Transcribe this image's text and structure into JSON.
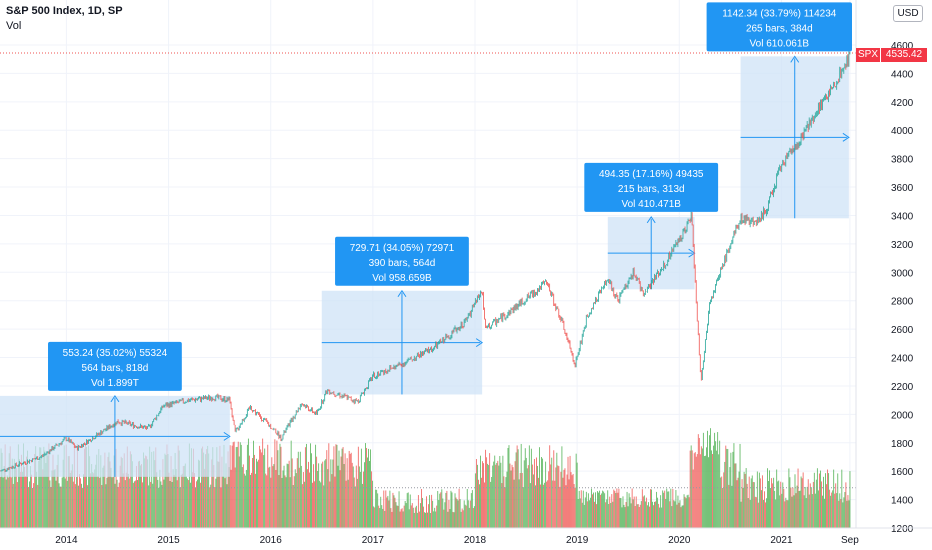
{
  "header": {
    "title": "S&P 500 Index, 1D, SP",
    "volume_label": "Vol"
  },
  "currency_label": "USD",
  "last_price": {
    "ticker": "SPX",
    "value": "4535.42",
    "color": "#f23645"
  },
  "colors": {
    "up": "#26a69a",
    "down": "#ef5350",
    "vol_up": "#4caf50",
    "vol_down": "#ef5350",
    "box_fill": "#cfe3f7",
    "box_stroke": "#2196f3",
    "label_bg": "#2196f3"
  },
  "chart_data": {
    "type": "candlestick",
    "title": "S&P 500 Index, 1D, SP",
    "xlabel": "",
    "ylabel": "",
    "ylim": [
      1200,
      4700
    ],
    "y_ticks": [
      1200,
      1400,
      1600,
      1800,
      2000,
      2200,
      2400,
      2600,
      2800,
      3000,
      3200,
      3400,
      3600,
      3800,
      4000,
      4200,
      4400,
      4600
    ],
    "x_ticks": [
      "2014",
      "2015",
      "2016",
      "2017",
      "2018",
      "2019",
      "2020",
      "2021",
      "Sep"
    ],
    "x_tick_years": [
      2014,
      2015,
      2016,
      2017,
      2018,
      2019,
      2020,
      2021,
      2021.67
    ],
    "x_range": [
      2013.35,
      2021.72
    ],
    "grid": true,
    "price_path": [
      [
        2013.35,
        1600
      ],
      [
        2013.5,
        1640
      ],
      [
        2013.75,
        1700
      ],
      [
        2014.0,
        1830
      ],
      [
        2014.1,
        1760
      ],
      [
        2014.5,
        1950
      ],
      [
        2014.8,
        1900
      ],
      [
        2014.95,
        2060
      ],
      [
        2015.2,
        2100
      ],
      [
        2015.45,
        2120
      ],
      [
        2015.6,
        2100
      ],
      [
        2015.65,
        1870
      ],
      [
        2015.8,
        2050
      ],
      [
        2016.05,
        1880
      ],
      [
        2016.1,
        1830
      ],
      [
        2016.3,
        2080
      ],
      [
        2016.45,
        2000
      ],
      [
        2016.55,
        2170
      ],
      [
        2016.85,
        2090
      ],
      [
        2017.0,
        2270
      ],
      [
        2017.3,
        2360
      ],
      [
        2017.6,
        2470
      ],
      [
        2017.9,
        2650
      ],
      [
        2018.07,
        2870
      ],
      [
        2018.1,
        2600
      ],
      [
        2018.3,
        2700
      ],
      [
        2018.7,
        2930
      ],
      [
        2018.85,
        2650
      ],
      [
        2018.98,
        2350
      ],
      [
        2019.1,
        2700
      ],
      [
        2019.3,
        2950
      ],
      [
        2019.4,
        2800
      ],
      [
        2019.55,
        3000
      ],
      [
        2019.65,
        2850
      ],
      [
        2019.85,
        3050
      ],
      [
        2020.12,
        3390
      ],
      [
        2020.15,
        3000
      ],
      [
        2020.21,
        2230
      ],
      [
        2020.3,
        2800
      ],
      [
        2020.45,
        3100
      ],
      [
        2020.6,
        3380
      ],
      [
        2020.75,
        3350
      ],
      [
        2020.85,
        3450
      ],
      [
        2021.0,
        3750
      ],
      [
        2021.2,
        3950
      ],
      [
        2021.35,
        4150
      ],
      [
        2021.5,
        4300
      ],
      [
        2021.68,
        4535
      ]
    ],
    "volume_axis_ref": 1483,
    "measurements": [
      {
        "label_line1": "553.24 (35.02%) 55324",
        "label_line2": "564 bars, 818d",
        "label_line3": "Vol 1.899T",
        "x_start": 2013.35,
        "x_end": 2015.6,
        "y_low": 1560,
        "y_high": 2130
      },
      {
        "label_line1": "729.71 (34.05%) 72971",
        "label_line2": "390 bars, 564d",
        "label_line3": "Vol 958.659B",
        "x_start": 2016.5,
        "x_end": 2018.07,
        "y_low": 2140,
        "y_high": 2870
      },
      {
        "label_line1": "494.35 (17.16%) 49435",
        "label_line2": "215 bars, 313d",
        "label_line3": "Vol 410.471B",
        "x_start": 2019.3,
        "x_end": 2020.15,
        "y_low": 2880,
        "y_high": 3390
      },
      {
        "label_line1": "1142.34 (33.79%) 114234",
        "label_line2": "265 bars, 384d",
        "label_line3": "Vol 610.061B",
        "x_start": 2020.6,
        "x_end": 2021.66,
        "y_low": 3380,
        "y_high": 4520
      }
    ]
  }
}
